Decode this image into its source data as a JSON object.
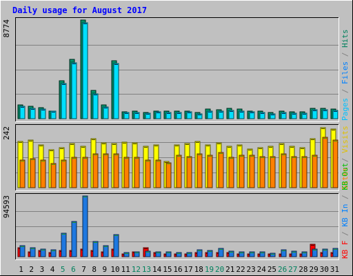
{
  "chart_data": {
    "type": "bar",
    "title": "Daily usage for August 2017",
    "days": [
      "1",
      "2",
      "3",
      "4",
      "5",
      "6",
      "7",
      "8",
      "9",
      "10",
      "11",
      "12",
      "13",
      "14",
      "15",
      "16",
      "17",
      "18",
      "19",
      "20",
      "21",
      "22",
      "23",
      "24",
      "25",
      "26",
      "27",
      "28",
      "29",
      "30",
      "31"
    ],
    "weekend_days": [
      "5",
      "6",
      "12",
      "13",
      "19",
      "20",
      "26",
      "27"
    ],
    "panels": [
      {
        "id": "hits",
        "max_label": "8774",
        "max_value": 8774,
        "legend": [
          {
            "label": "Pages",
            "color": "#00C0FF"
          },
          {
            "label": " / ",
            "color": "#808080"
          },
          {
            "label": "Files",
            "color": "#0080FF"
          },
          {
            "label": " / ",
            "color": "#808080"
          },
          {
            "label": "Hits",
            "color": "#00805C"
          }
        ],
        "series": [
          {
            "name": "Hits",
            "color": "#00805C",
            "values": [
              1250,
              1100,
              1000,
              700,
              3400,
              5300,
              8774,
              2500,
              1200,
              5150,
              600,
              650,
              550,
              700,
              650,
              650,
              700,
              550,
              850,
              800,
              950,
              850,
              700,
              650,
              550,
              700,
              600,
              600,
              950,
              950,
              850
            ]
          },
          {
            "name": "Files",
            "color": "#00E0FF",
            "values": [
              1100,
              950,
              850,
              650,
              3150,
              5000,
              8550,
              2200,
              1050,
              4900,
              550,
              580,
              500,
              620,
              580,
              580,
              600,
              450,
              700,
              650,
              750,
              700,
              600,
              550,
              450,
              550,
              500,
              500,
              800,
              800,
              750
            ]
          }
        ]
      },
      {
        "id": "sites",
        "max_label": "242",
        "max_value": 242,
        "legend": [
          {
            "label": "Sites",
            "color": "#FF8000"
          },
          {
            "label": " / ",
            "color": "#808080"
          },
          {
            "label": "Visits",
            "color": "#E0C000"
          }
        ],
        "series": [
          {
            "name": "Visits",
            "color": "#FFFF00",
            "values": [
              185,
              190,
              170,
              150,
              160,
              175,
              165,
              195,
              180,
              175,
              182,
              180,
              165,
              170,
              105,
              170,
              175,
              185,
              170,
              180,
              165,
              170,
              155,
              160,
              165,
              175,
              165,
              160,
              195,
              240,
              235
            ]
          },
          {
            "name": "Sites",
            "color": "#FF8000",
            "values": [
              110,
              115,
              110,
              95,
              110,
              120,
              120,
              135,
              135,
              135,
              120,
              120,
              110,
              110,
              100,
              130,
              125,
              135,
              130,
              140,
              120,
              130,
              130,
              125,
              125,
              135,
              125,
              125,
              130,
              200,
              190
            ]
          }
        ]
      },
      {
        "id": "kbytes",
        "max_label": "94593",
        "max_value": 94593,
        "legend": [
          {
            "label": "KB F",
            "color": "#FF0000"
          },
          {
            "label": " / ",
            "color": "#808080"
          },
          {
            "label": "KB In",
            "color": "#0080FF"
          },
          {
            "label": " / ",
            "color": "#808080"
          },
          {
            "label": "KB Out",
            "color": "#00C000"
          }
        ],
        "series": [
          {
            "name": "KB F",
            "color": "#FF0000",
            "values": [
              14000,
              8000,
              10000,
              6000,
              10000,
              10000,
              12000,
              10000,
              8000,
              12000,
              4000,
              8000,
              14000,
              6000,
              4000,
              4000,
              4000,
              6000,
              6000,
              6000,
              6000,
              4000,
              4000,
              4000,
              4000,
              4000,
              4000,
              4000,
              19000,
              6000,
              6000
            ]
          },
          {
            "name": "KB In",
            "color": "#1E78E0",
            "values": [
              17000,
              14000,
              12000,
              11000,
              37000,
              55000,
              94593,
              24000,
              17000,
              34000,
              6000,
              7000,
              9000,
              8000,
              7000,
              6000,
              6000,
              11000,
              10000,
              13000,
              9000,
              8000,
              8000,
              7000,
              5000,
              11000,
              9000,
              7000,
              12000,
              12000,
              13000
            ]
          }
        ]
      }
    ]
  }
}
